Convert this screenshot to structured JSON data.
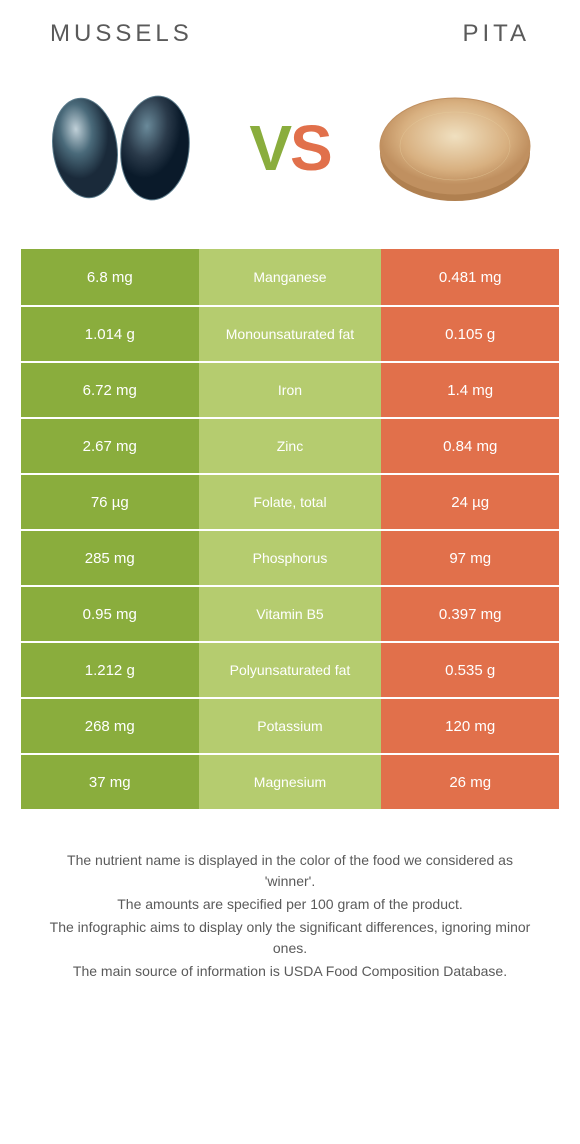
{
  "header": {
    "left_title": "Mussels",
    "right_title": "Pita",
    "vs_v": "V",
    "vs_s": "S"
  },
  "colors": {
    "left_bg": "#8aad3d",
    "mid_bg": "#b5cc6f",
    "right_bg": "#e1704b",
    "text": "#ffffff",
    "title_text": "#5a5a5a"
  },
  "rows": [
    {
      "left": "6.8 mg",
      "mid": "Manganese",
      "right": "0.481 mg"
    },
    {
      "left": "1.014 g",
      "mid": "Monounsaturated fat",
      "right": "0.105 g"
    },
    {
      "left": "6.72 mg",
      "mid": "Iron",
      "right": "1.4 mg"
    },
    {
      "left": "2.67 mg",
      "mid": "Zinc",
      "right": "0.84 mg"
    },
    {
      "left": "76 µg",
      "mid": "Folate, total",
      "right": "24 µg"
    },
    {
      "left": "285 mg",
      "mid": "Phosphorus",
      "right": "97 mg"
    },
    {
      "left": "0.95 mg",
      "mid": "Vitamin B5",
      "right": "0.397 mg"
    },
    {
      "left": "1.212 g",
      "mid": "Polyunsaturated fat",
      "right": "0.535 g"
    },
    {
      "left": "268 mg",
      "mid": "Potassium",
      "right": "120 mg"
    },
    {
      "left": "37 mg",
      "mid": "Magnesium",
      "right": "26 mg"
    }
  ],
  "footnotes": [
    "The nutrient name is displayed in the color of the food we considered as 'winner'.",
    "The amounts are specified per 100 gram of the product.",
    "The infographic aims to display only the significant differences, ignoring minor ones.",
    "The main source of information is USDA Food Composition Database."
  ]
}
